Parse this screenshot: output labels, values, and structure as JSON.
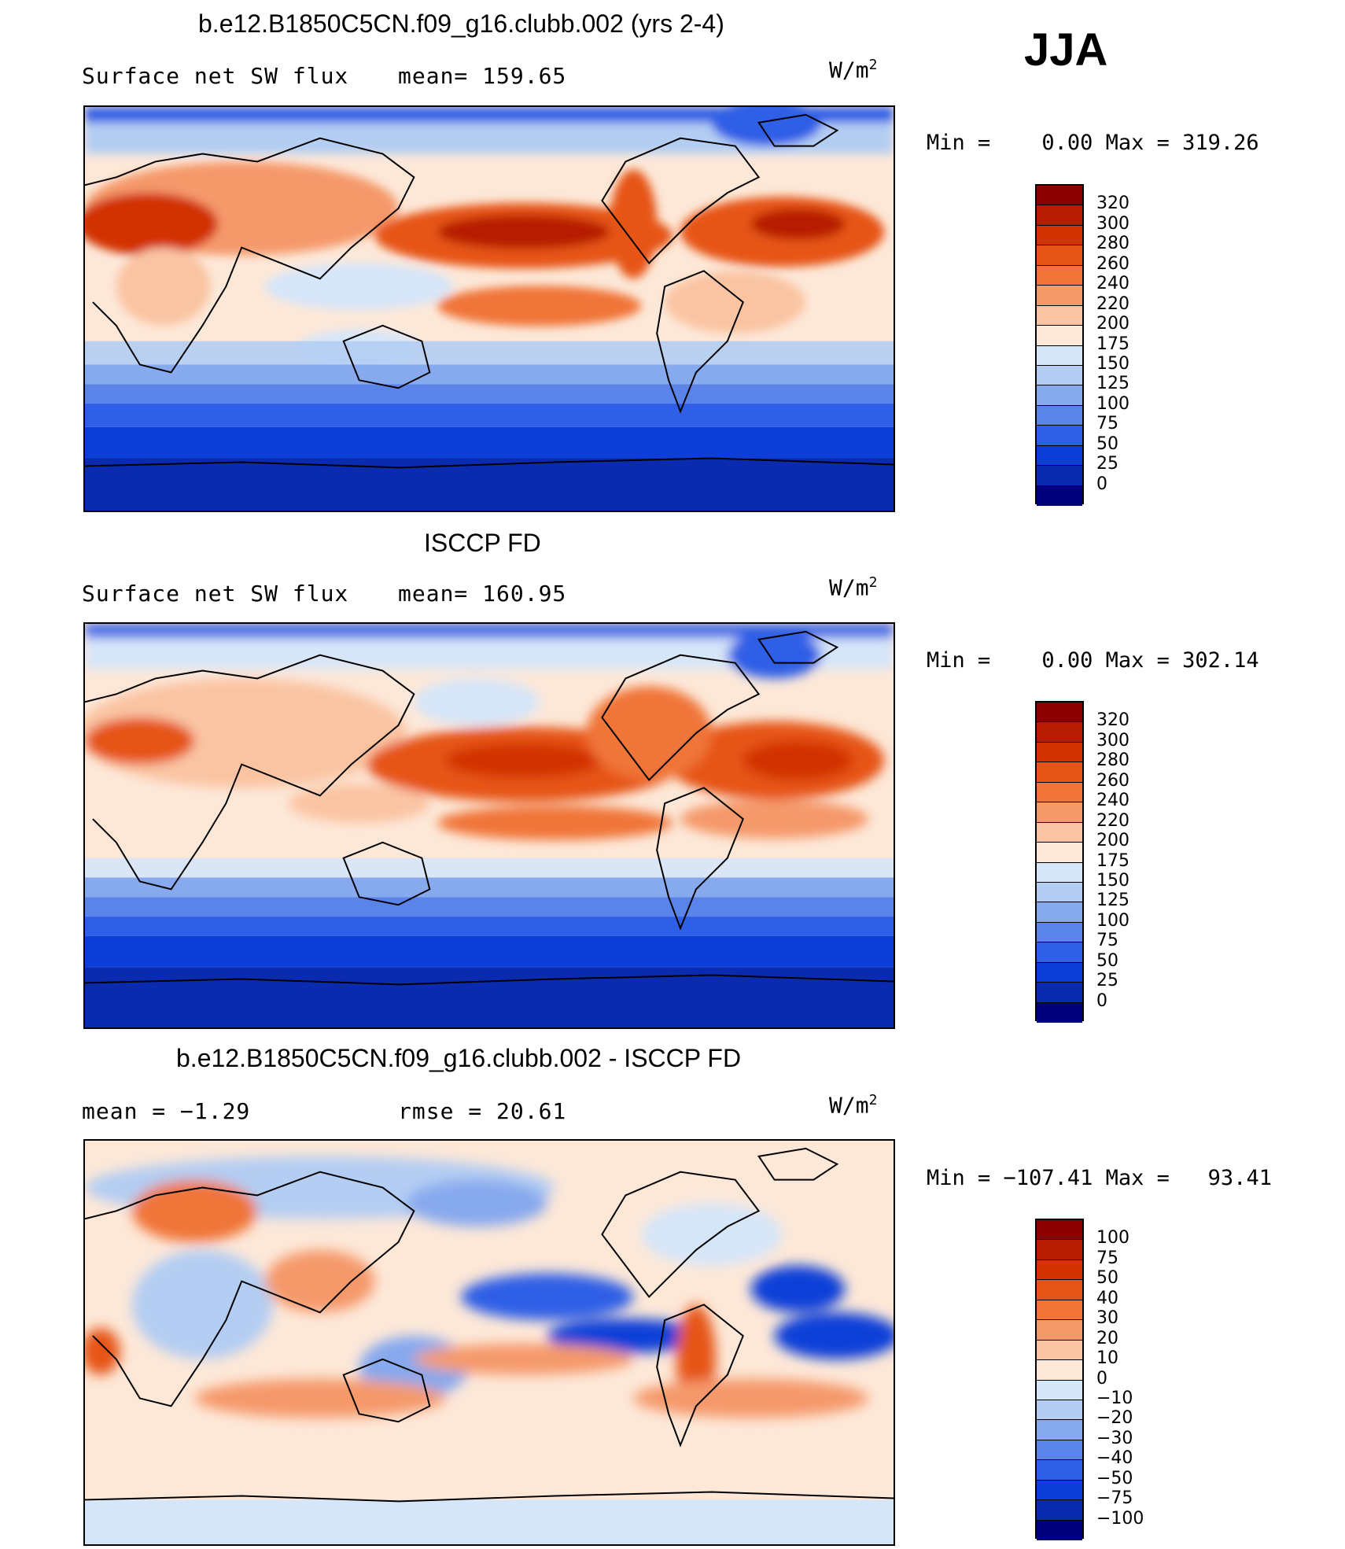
{
  "season": "JJA",
  "units_label": "W/m",
  "units_sup": "2",
  "panels": [
    {
      "title": "b.e12.B1850C5CN.f09_g16.clubb.002 (yrs 2-4)",
      "left_label": "Surface net SW flux",
      "right_label": "mean=  159.65",
      "min_label": "Min =",
      "min_value": "0.00",
      "max_label": "Max =",
      "max_value": "319.26",
      "levels": [
        "320",
        "300",
        "280",
        "260",
        "240",
        "220",
        "200",
        "175",
        "150",
        "125",
        "100",
        "75",
        "50",
        "25",
        "0"
      ],
      "colors": [
        "#8b0000",
        "#b71c00",
        "#d23300",
        "#e65518",
        "#f07438",
        "#f5996a",
        "#fac4a3",
        "#fde8d8",
        "#d6e6f9",
        "#b3cdf3",
        "#87a9ee",
        "#5b84ea",
        "#2f5fe6",
        "#0d3fd8",
        "#0a2ab0",
        "#00007a"
      ]
    },
    {
      "title": "ISCCP FD",
      "left_label": "Surface net SW flux",
      "right_label": "mean=  160.95",
      "min_label": "Min =",
      "min_value": "0.00",
      "max_label": "Max =",
      "max_value": "302.14",
      "levels": [
        "320",
        "300",
        "280",
        "260",
        "240",
        "220",
        "200",
        "175",
        "150",
        "125",
        "100",
        "75",
        "50",
        "25",
        "0"
      ],
      "colors": [
        "#8b0000",
        "#b71c00",
        "#d23300",
        "#e65518",
        "#f07438",
        "#f5996a",
        "#fac4a3",
        "#fde8d8",
        "#d6e6f9",
        "#b3cdf3",
        "#87a9ee",
        "#5b84ea",
        "#2f5fe6",
        "#0d3fd8",
        "#0a2ab0",
        "#00007a"
      ]
    },
    {
      "title": "b.e12.B1850C5CN.f09_g16.clubb.002 - ISCCP FD",
      "left_label": "mean =   −1.29",
      "right_label": "rmse =   20.61",
      "min_label": "Min =",
      "min_value": "−107.41",
      "max_label": "Max =",
      "max_value": "93.41",
      "levels": [
        "100",
        "75",
        "50",
        "40",
        "30",
        "20",
        "10",
        "0",
        "−10",
        "−20",
        "−30",
        "−40",
        "−50",
        "−75",
        "−100"
      ],
      "colors": [
        "#8b0000",
        "#b71c00",
        "#d23300",
        "#e65518",
        "#f07438",
        "#f5996a",
        "#fac4a3",
        "#fde8d8",
        "#d6e6f9",
        "#b3cdf3",
        "#87a9ee",
        "#5b84ea",
        "#2f5fe6",
        "#0d3fd8",
        "#0a2ab0",
        "#00007a"
      ]
    }
  ]
}
